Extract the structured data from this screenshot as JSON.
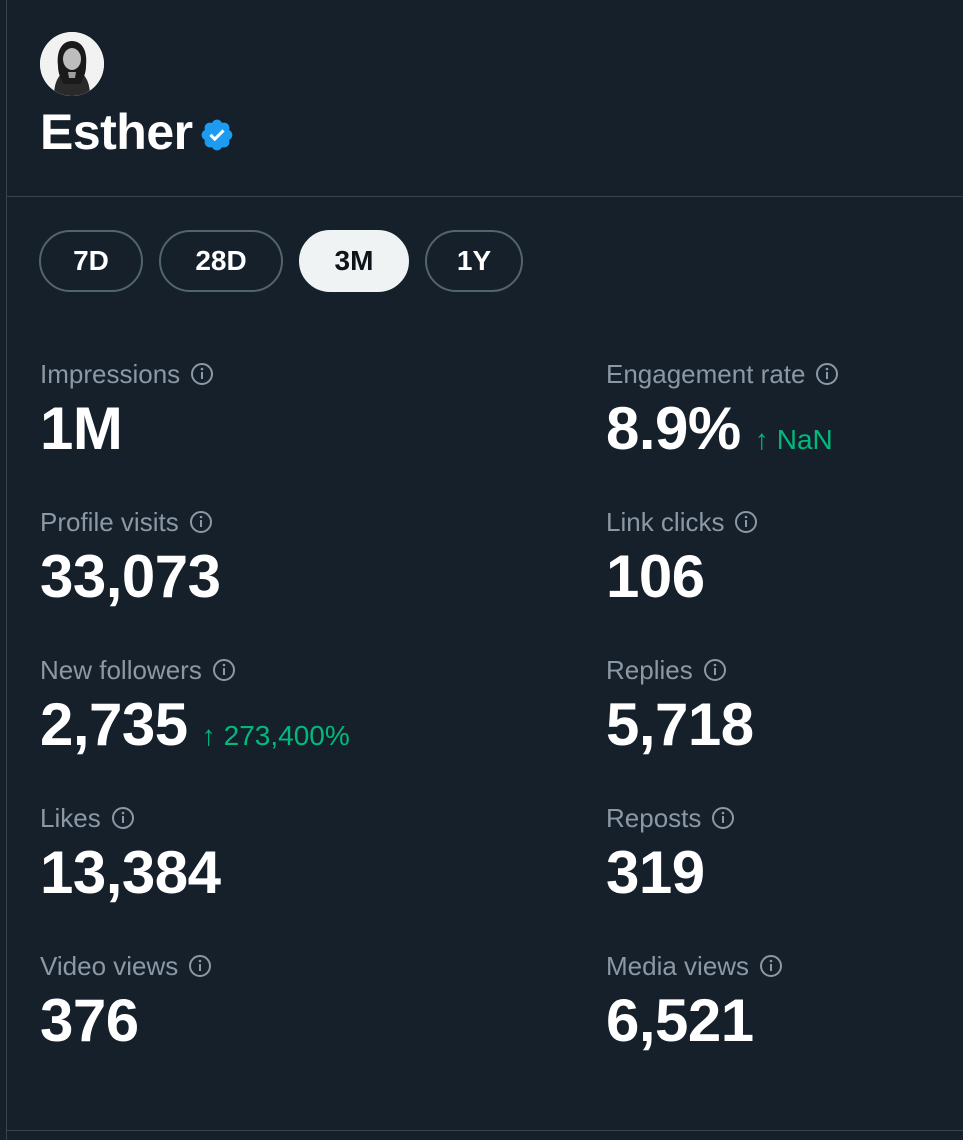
{
  "profile": {
    "name": "Esther",
    "verified": true,
    "verified_color": "#1d9bf0"
  },
  "range_tabs": [
    {
      "label": "7D",
      "active": false
    },
    {
      "label": "28D",
      "active": false
    },
    {
      "label": "3M",
      "active": true
    },
    {
      "label": "1Y",
      "active": false
    }
  ],
  "metrics": {
    "impressions": {
      "label": "Impressions",
      "value": "1M"
    },
    "engagement_rate": {
      "label": "Engagement rate",
      "value": "8.9%",
      "delta": "NaN",
      "delta_arrow": "↑"
    },
    "profile_visits": {
      "label": "Profile visits",
      "value": "33,073"
    },
    "link_clicks": {
      "label": "Link clicks",
      "value": "106"
    },
    "new_followers": {
      "label": "New followers",
      "value": "2,735",
      "delta": "273,400%",
      "delta_arrow": "↑"
    },
    "replies": {
      "label": "Replies",
      "value": "5,718"
    },
    "likes": {
      "label": "Likes",
      "value": "13,384"
    },
    "reposts": {
      "label": "Reposts",
      "value": "319"
    },
    "video_views": {
      "label": "Video views",
      "value": "376"
    },
    "media_views": {
      "label": "Media views",
      "value": "6,521"
    }
  },
  "colors": {
    "background": "#15202b",
    "positive_delta": "#00ba7c",
    "label": "#8b98a5"
  }
}
